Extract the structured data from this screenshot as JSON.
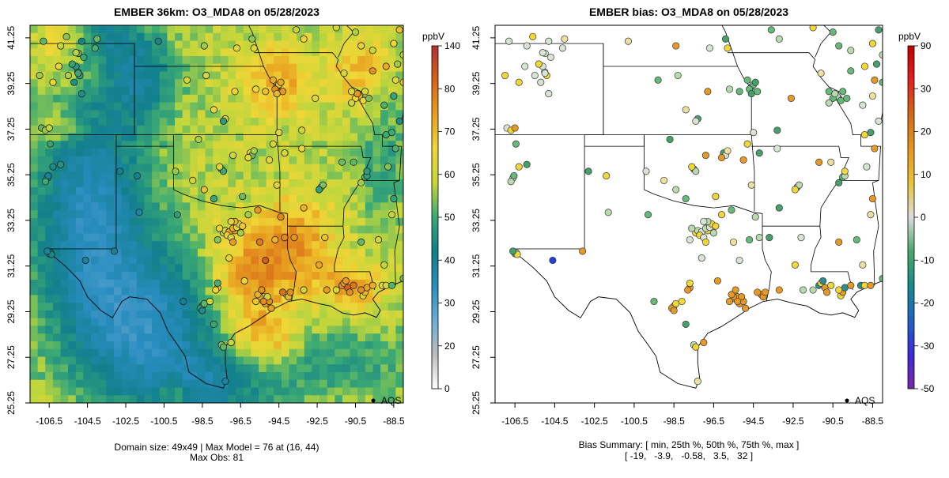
{
  "chart_data": [
    {
      "type": "heatmap",
      "title": "EMBER 36km: O3_MDA8 on 05/28/2023",
      "x_ticks": [
        "-106.5",
        "-104.5",
        "-102.5",
        "-100.5",
        "-98.5",
        "-96.5",
        "-94.5",
        "-92.5",
        "-90.5",
        "-88.5"
      ],
      "y_ticks": [
        "25.25",
        "27.25",
        "29.25",
        "31.25",
        "33.25",
        "35.25",
        "37.25",
        "39.25",
        "41.25"
      ],
      "xlim": [
        -107.5,
        -88.0
      ],
      "ylim": [
        25.25,
        41.8
      ],
      "colorbar": {
        "unit": "ppbV",
        "tick_labels": [
          "0",
          "20",
          "30",
          "40",
          "50",
          "60",
          "70",
          "80",
          "140"
        ],
        "tick_values": [
          0,
          20,
          30,
          40,
          50,
          60,
          70,
          80,
          140
        ],
        "colors": [
          "#ffffff",
          "#bdbdbd",
          "#6baed6",
          "#2b8cbe",
          "#0f7f8a",
          "#3aa874",
          "#c5d63a",
          "#f0d53a",
          "#e8a020",
          "#d7631a",
          "#b03030"
        ]
      },
      "grid": {
        "rows": 49,
        "cols": 49
      },
      "summary": {
        "domain_line": "Domain size: 49x49 | Max Model = 76 at (16, 44)",
        "obs_line": "Max Obs: 81",
        "domain_size": "49x49",
        "max_model": 76,
        "max_model_cell": [
          16,
          44
        ],
        "max_obs": 81
      },
      "legend": {
        "label": "AQS",
        "position": "bottom-right"
      }
    },
    {
      "type": "scatter",
      "title": "EMBER bias: O3_MDA8 on 05/28/2023",
      "x_ticks": [
        "-106.5",
        "-104.5",
        "-102.5",
        "-100.5",
        "-98.5",
        "-96.5",
        "-94.5",
        "-92.5",
        "-90.5",
        "-88.5"
      ],
      "y_ticks": [
        "25.25",
        "27.25",
        "29.25",
        "31.25",
        "33.25",
        "35.25",
        "37.25",
        "39.25",
        "41.25"
      ],
      "xlim": [
        -107.5,
        -88.0
      ],
      "ylim": [
        25.25,
        41.8
      ],
      "colorbar": {
        "unit": "ppbV",
        "tick_labels": [
          "-50",
          "-30",
          "-20",
          "-10",
          "0",
          "10",
          "20",
          "30",
          "90"
        ],
        "tick_values": [
          -50,
          -30,
          -20,
          -10,
          0,
          10,
          20,
          30,
          90
        ],
        "colors": [
          "#7a28a6",
          "#3b2bd6",
          "#1f62c4",
          "#1a8a8a",
          "#4aa868",
          "#dcdcdc",
          "#e8c43a",
          "#e6961f",
          "#d06a16",
          "#e02020",
          "#c00000"
        ]
      },
      "summary": {
        "line1": "Bias Summary: [ min, 25th %, 50th %, 75th %, max ]",
        "line2": "[ -19,   -3.9,   -0.58,   3.5,   32 ]",
        "values": [
          -19,
          -3.9,
          -0.58,
          3.5,
          32
        ]
      },
      "legend": {
        "label": "AQS",
        "position": "bottom-right"
      }
    }
  ],
  "sites": [
    [
      -106.49,
      31.79
    ],
    [
      -106.44,
      31.84
    ],
    [
      -106.38,
      31.76
    ],
    [
      -106.6,
      31.9
    ],
    [
      -104.6,
      31.5
    ],
    [
      -103.1,
      31.9
    ],
    [
      -106.6,
      35.1
    ],
    [
      -106.55,
      35.2
    ],
    [
      -106.7,
      34.95
    ],
    [
      -106.3,
      35.6
    ],
    [
      -105.9,
      35.7
    ],
    [
      -104.8,
      38.8
    ],
    [
      -104.9,
      39.6
    ],
    [
      -105.0,
      39.75
    ],
    [
      -104.99,
      39.7
    ],
    [
      -105.1,
      40.0
    ],
    [
      -105.3,
      40.1
    ],
    [
      -104.7,
      40.4
    ],
    [
      -105.2,
      39.3
    ],
    [
      -105.5,
      39.6
    ],
    [
      -106.3,
      39.3
    ],
    [
      -104.98,
      40.57
    ],
    [
      -105.1,
      40.6
    ],
    [
      -106.0,
      40.0
    ],
    [
      -107.0,
      39.6
    ],
    [
      -106.9,
      37.3
    ],
    [
      -106.7,
      37.2
    ],
    [
      -106.5,
      37.3
    ],
    [
      -106.45,
      36.6
    ],
    [
      -105.9,
      40.9
    ],
    [
      -104.8,
      41.1
    ],
    [
      -104.1,
      40.8
    ],
    [
      -105.6,
      41.3
    ],
    [
      -106.8,
      41.1
    ],
    [
      -104.0,
      41.2
    ],
    [
      -99.8,
      33.5
    ],
    [
      -101.8,
      33.6
    ],
    [
      -101.9,
      35.2
    ],
    [
      -102.8,
      35.4
    ],
    [
      -97.4,
      32.7
    ],
    [
      -97.3,
      32.8
    ],
    [
      -97.1,
      32.75
    ],
    [
      -96.8,
      32.8
    ],
    [
      -96.9,
      32.9
    ],
    [
      -96.7,
      32.95
    ],
    [
      -97.2,
      32.6
    ],
    [
      -96.5,
      32.7
    ],
    [
      -97.0,
      32.5
    ],
    [
      -96.9,
      32.3
    ],
    [
      -97.6,
      32.9
    ],
    [
      -97.7,
      32.4
    ],
    [
      -96.6,
      33.1
    ],
    [
      -96.8,
      33.2
    ],
    [
      -97.0,
      33.2
    ],
    [
      -96.4,
      33.0
    ],
    [
      -97.7,
      30.3
    ],
    [
      -97.7,
      30.5
    ],
    [
      -97.8,
      30.2
    ],
    [
      -98.5,
      29.5
    ],
    [
      -98.6,
      29.4
    ],
    [
      -98.4,
      29.6
    ],
    [
      -98.5,
      29.3
    ],
    [
      -98.1,
      29.7
    ],
    [
      -99.5,
      29.7
    ],
    [
      -97.5,
      27.8
    ],
    [
      -97.4,
      27.7
    ],
    [
      -97.9,
      28.7
    ],
    [
      -97.1,
      31.6
    ],
    [
      -96.3,
      30.6
    ],
    [
      -95.5,
      32.3
    ],
    [
      -94.7,
      32.4
    ],
    [
      -94.2,
      32.5
    ],
    [
      -96.1,
      33.5
    ],
    [
      -95.4,
      29.8
    ],
    [
      -95.3,
      29.9
    ],
    [
      -95.1,
      29.7
    ],
    [
      -95.2,
      29.6
    ],
    [
      -95.5,
      29.9
    ],
    [
      -95.6,
      30.0
    ],
    [
      -95.0,
      29.7
    ],
    [
      -95.4,
      30.2
    ],
    [
      -95.7,
      29.7
    ],
    [
      -94.9,
      29.4
    ],
    [
      -95.1,
      29.9
    ],
    [
      -95.3,
      29.7
    ],
    [
      -94.1,
      30.0
    ],
    [
      -94.0,
      29.9
    ],
    [
      -93.9,
      30.1
    ],
    [
      -94.3,
      30.1
    ],
    [
      -93.2,
      30.2
    ],
    [
      -91.2,
      30.4
    ],
    [
      -91.1,
      30.5
    ],
    [
      -90.9,
      30.3
    ],
    [
      -91.0,
      30.6
    ],
    [
      -90.1,
      29.95
    ],
    [
      -90.0,
      30.1
    ],
    [
      -89.9,
      30.3
    ],
    [
      -90.2,
      30.2
    ],
    [
      -90.8,
      30.1
    ],
    [
      -91.5,
      30.2
    ],
    [
      -90.6,
      30.4
    ],
    [
      -89.6,
      30.4
    ],
    [
      -89.1,
      30.4
    ],
    [
      -88.9,
      30.4
    ],
    [
      -88.6,
      30.4
    ],
    [
      -88.0,
      30.7
    ],
    [
      -92.0,
      30.2
    ],
    [
      -92.4,
      31.3
    ],
    [
      -93.7,
      32.5
    ],
    [
      -92.1,
      32.5
    ],
    [
      -90.2,
      32.3
    ],
    [
      -89.0,
      31.3
    ],
    [
      -97.5,
      35.5
    ],
    [
      -97.4,
      35.4
    ],
    [
      -97.6,
      35.6
    ],
    [
      -96.0,
      36.2
    ],
    [
      -95.9,
      36.1
    ],
    [
      -96.1,
      36.0
    ],
    [
      -95.8,
      36.3
    ],
    [
      -97.9,
      34.2
    ],
    [
      -98.4,
      34.6
    ],
    [
      -94.8,
      36.6
    ],
    [
      -98.7,
      36.8
    ],
    [
      -99.9,
      35.4
    ],
    [
      -96.9,
      36.1
    ],
    [
      -94.6,
      34.8
    ],
    [
      -92.3,
      34.7
    ],
    [
      -92.2,
      34.8
    ],
    [
      -92.4,
      34.6
    ],
    [
      -94.2,
      36.2
    ],
    [
      -93.3,
      36.4
    ],
    [
      -91.2,
      35.8
    ],
    [
      -90.6,
      35.8
    ],
    [
      -90.0,
      35.15
    ],
    [
      -89.9,
      35.2
    ],
    [
      -89.9,
      35.4
    ],
    [
      -90.2,
      34.9
    ],
    [
      -88.8,
      35.6
    ],
    [
      -88.5,
      34.2
    ],
    [
      -88.6,
      33.5
    ],
    [
      -89.3,
      32.4
    ],
    [
      -94.6,
      39.1
    ],
    [
      -94.5,
      39.2
    ],
    [
      -94.7,
      39.0
    ],
    [
      -94.4,
      39.3
    ],
    [
      -94.8,
      39.4
    ],
    [
      -94.3,
      38.9
    ],
    [
      -94.6,
      38.8
    ],
    [
      -95.7,
      39.0
    ],
    [
      -95.2,
      38.9
    ],
    [
      -97.3,
      37.7
    ],
    [
      -97.4,
      37.6
    ],
    [
      -96.8,
      38.9
    ],
    [
      -97.9,
      38.1
    ],
    [
      -99.3,
      39.4
    ],
    [
      -98.3,
      39.6
    ],
    [
      -95.8,
      40.8
    ],
    [
      -95.9,
      41.2
    ],
    [
      -96.7,
      40.8
    ],
    [
      -98.4,
      40.9
    ],
    [
      -100.8,
      41.1
    ],
    [
      -93.6,
      41.6
    ],
    [
      -93.2,
      41.2
    ],
    [
      -91.5,
      41.7
    ],
    [
      -93.3,
      37.2
    ],
    [
      -94.5,
      37.1
    ],
    [
      -92.6,
      38.6
    ],
    [
      -90.2,
      38.6
    ],
    [
      -90.3,
      38.7
    ],
    [
      -90.1,
      38.5
    ],
    [
      -90.5,
      38.6
    ],
    [
      -90.4,
      38.8
    ],
    [
      -90.0,
      38.9
    ],
    [
      -89.8,
      38.6
    ],
    [
      -90.7,
      38.4
    ],
    [
      -90.7,
      38.9
    ],
    [
      -89.6,
      39.8
    ],
    [
      -88.9,
      40.0
    ],
    [
      -88.3,
      40.1
    ],
    [
      -89.0,
      38.3
    ],
    [
      -88.4,
      39.4
    ],
    [
      -91.1,
      39.7
    ],
    [
      -90.2,
      40.9
    ],
    [
      -89.6,
      40.7
    ],
    [
      -88.9,
      37.0
    ],
    [
      -88.6,
      37.1
    ],
    [
      -88.2,
      37.6
    ],
    [
      -88.4,
      36.4
    ],
    [
      -88.5,
      38.7
    ],
    [
      -88.0,
      39.3
    ],
    [
      -88.0,
      40.5
    ],
    [
      -88.5,
      41.0
    ],
    [
      -88.2,
      41.6
    ],
    [
      -90.5,
      41.5
    ],
    [
      -95.0,
      35.9
    ],
    [
      -99.0,
      35.0
    ],
    [
      -95.6,
      33.7
    ],
    [
      -94.4,
      33.4
    ],
    [
      -96.4,
      34.3
    ],
    [
      -93.2,
      33.8
    ],
    [
      -95.2,
      31.5
    ],
    [
      -97.0,
      27.9
    ],
    [
      -97.3,
      26.2
    ]
  ],
  "bias_colors": {
    "nearzero": "#d8e3d4",
    "light": "#b9dab0",
    "green": "#66b97a",
    "greenDark": "#45a06a",
    "teal": "#2a8f8f",
    "yellow": "#f2d738",
    "yelLight": "#ece0a0",
    "orange": "#e59a28",
    "orangeDark": "#d07a18",
    "blue": "#2540d8",
    "red": "#e04020"
  }
}
